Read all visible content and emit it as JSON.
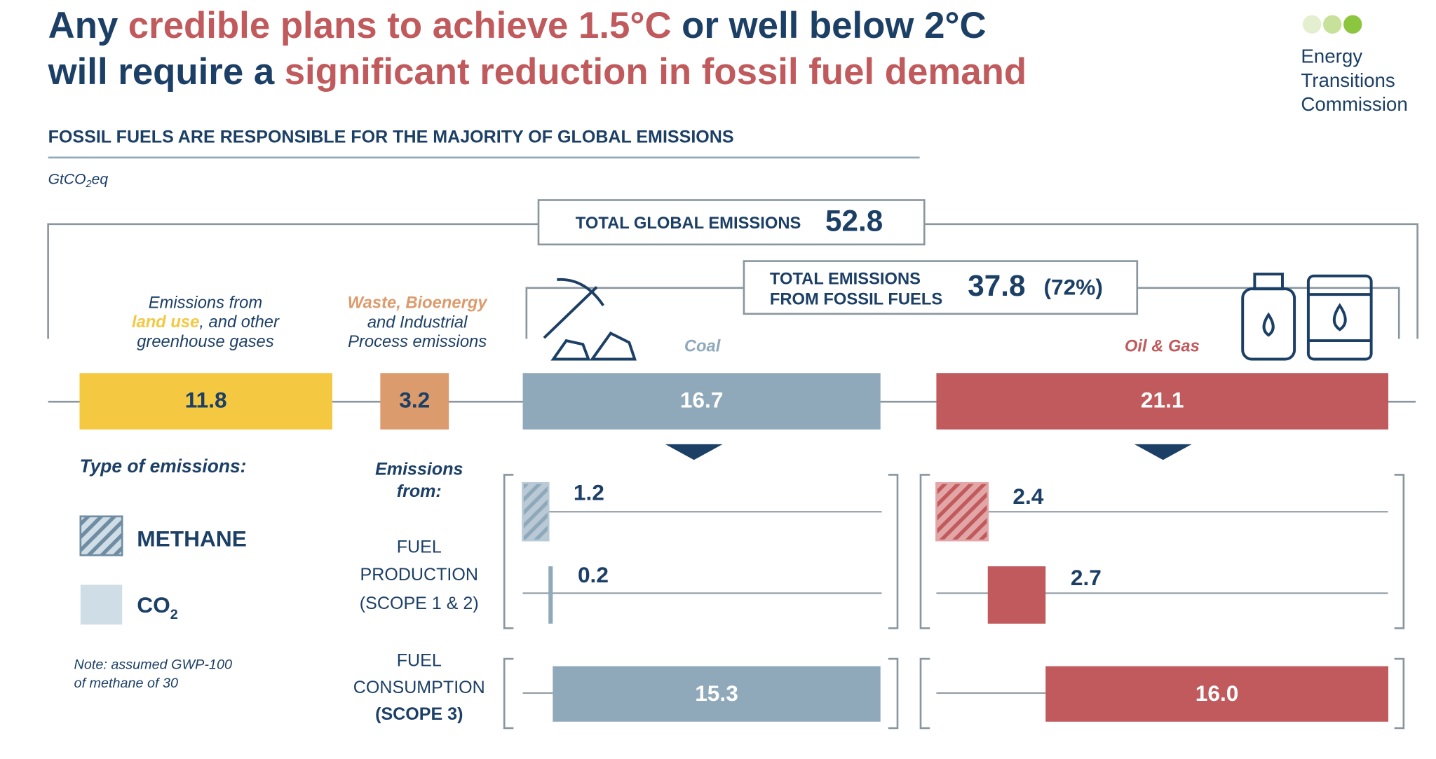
{
  "title": {
    "line1": [
      {
        "text": "Any",
        "accent": false
      },
      {
        "text": "credible plans to achieve 1.5°C",
        "accent": true
      },
      {
        "text": "or well below 2°C",
        "accent": false
      }
    ],
    "line2": [
      {
        "text": "will require a",
        "accent": false
      },
      {
        "text": "significant reduction in fossil fuel demand",
        "accent": true
      }
    ]
  },
  "logo": [
    "Energy",
    "Transitions",
    "Commission"
  ],
  "subtitle": "FOSSIL FUELS ARE RESPONSIBLE FOR THE MAJORITY OF GLOBAL EMISSIONS",
  "unit": {
    "base": "GtCO",
    "sub": "2",
    "suffix": "eq"
  },
  "total": {
    "label": "TOTAL GLOBAL EMISSIONS",
    "value": 52.8
  },
  "fossil": {
    "label": [
      "TOTAL EMISSIONS",
      "FROM FOSSIL FUELS"
    ],
    "value": 37.8,
    "share": "(72%)"
  },
  "categories": [
    {
      "lines": [
        "Emissions from",
        "land use",
        ", and other",
        "greenhouse gases"
      ],
      "value": 11.8,
      "color": "#f5c842"
    },
    {
      "lines": [
        "Waste, Bioenergy",
        "and Industrial",
        "Process emissions"
      ],
      "value": 3.2,
      "color": "#dc9b6c"
    },
    {
      "lines": [
        "Coal"
      ],
      "value": 16.7,
      "color": "#8fa9bb"
    },
    {
      "lines": [
        "Oil & Gas"
      ],
      "value": 21.1,
      "color": "#c05a5c"
    }
  ],
  "legend": {
    "title": "Type of emissions:",
    "methane": "METHANE",
    "co2": {
      "base": "CO",
      "sub": "2"
    },
    "note": [
      "Note: assumed GWP-100",
      "of methane of 30"
    ]
  },
  "rows": {
    "header": [
      "Emissions",
      "from:"
    ],
    "production": [
      "FUEL",
      "PRODUCTION",
      "(SCOPE 1 & 2)"
    ],
    "consumption": [
      "FUEL",
      "CONSUMPTION",
      "(SCOPE 3)"
    ]
  },
  "breakdown": [
    {
      "methane": 1.2,
      "production": 0.2,
      "consumption": 15.3,
      "consumption_label": "15.3",
      "color": "#8fa9bb"
    },
    {
      "methane": 2.4,
      "production": 2.7,
      "consumption": 16.0,
      "consumption_label": "16.0",
      "color": "#c05a5c"
    }
  ]
}
